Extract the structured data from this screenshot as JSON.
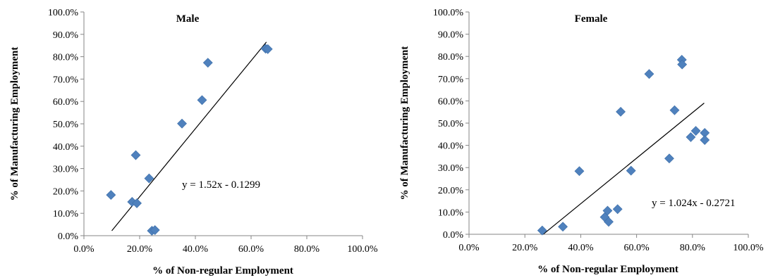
{
  "chart_data": [
    {
      "type": "scatter",
      "title": "Male",
      "xlabel": "% of Non-regular Employment",
      "ylabel": "% of Manufacturing Employment",
      "xlim": [
        0,
        1
      ],
      "ylim": [
        0,
        1
      ],
      "x_ticks": [
        "0.0%",
        "20.0%",
        "40.0%",
        "60.0%",
        "80.0%",
        "100.0%"
      ],
      "y_ticks": [
        "0.0%",
        "10.0%",
        "20.0%",
        "30.0%",
        "40.0%",
        "50.0%",
        "60.0%",
        "70.0%",
        "80.0%",
        "90.0%",
        "100.0%"
      ],
      "marker_color": "#4f81bd",
      "points": [
        {
          "x": 0.097,
          "y": 0.182
        },
        {
          "x": 0.173,
          "y": 0.151
        },
        {
          "x": 0.19,
          "y": 0.145
        },
        {
          "x": 0.186,
          "y": 0.36
        },
        {
          "x": 0.234,
          "y": 0.256
        },
        {
          "x": 0.244,
          "y": 0.022
        },
        {
          "x": 0.255,
          "y": 0.025
        },
        {
          "x": 0.352,
          "y": 0.501
        },
        {
          "x": 0.424,
          "y": 0.606
        },
        {
          "x": 0.445,
          "y": 0.773
        },
        {
          "x": 0.652,
          "y": 0.836
        },
        {
          "x": 0.66,
          "y": 0.834
        }
      ],
      "trendline": {
        "slope": 1.52,
        "intercept": -0.1299,
        "x_from": 0.1,
        "x_to": 0.655
      },
      "equation": "y = 1.52x - 0.1299"
    },
    {
      "type": "scatter",
      "title": "Female",
      "xlabel": "% of Non-regular Employment",
      "ylabel": "% of Manufacturing Employment",
      "xlim": [
        0,
        1
      ],
      "ylim": [
        0,
        1
      ],
      "x_ticks": [
        "0.0%",
        "20.0%",
        "40.0%",
        "60.0%",
        "80.0%",
        "100.0%"
      ],
      "y_ticks": [
        "0.0%",
        "10.0%",
        "20.0%",
        "30.0%",
        "40.0%",
        "50.0%",
        "60.0%",
        "70.0%",
        "80.0%",
        "90.0%",
        "100.0%"
      ],
      "marker_color": "#4f81bd",
      "points": [
        {
          "x": 0.262,
          "y": 0.017
        },
        {
          "x": 0.336,
          "y": 0.034
        },
        {
          "x": 0.395,
          "y": 0.284
        },
        {
          "x": 0.486,
          "y": 0.077
        },
        {
          "x": 0.496,
          "y": 0.106
        },
        {
          "x": 0.5,
          "y": 0.056
        },
        {
          "x": 0.532,
          "y": 0.113
        },
        {
          "x": 0.543,
          "y": 0.551
        },
        {
          "x": 0.58,
          "y": 0.286
        },
        {
          "x": 0.645,
          "y": 0.721
        },
        {
          "x": 0.717,
          "y": 0.341
        },
        {
          "x": 0.736,
          "y": 0.558
        },
        {
          "x": 0.762,
          "y": 0.785
        },
        {
          "x": 0.763,
          "y": 0.764
        },
        {
          "x": 0.794,
          "y": 0.437
        },
        {
          "x": 0.812,
          "y": 0.465
        },
        {
          "x": 0.844,
          "y": 0.456
        },
        {
          "x": 0.844,
          "y": 0.424
        }
      ],
      "trendline": {
        "slope": 1.024,
        "intercept": -0.2721,
        "x_from": 0.266,
        "x_to": 0.842
      },
      "equation": "y = 1.024x - 0.2721"
    }
  ]
}
